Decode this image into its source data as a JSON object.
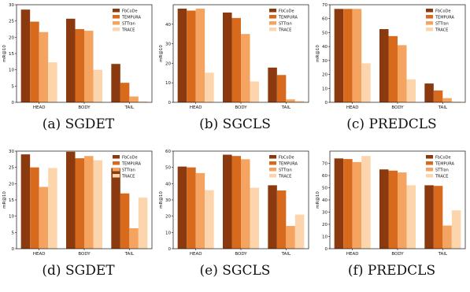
{
  "colors": {
    "FbCoDe": "#8b3a0f",
    "TEMPURA": "#d86a1e",
    "STTran": "#f4a460",
    "TRACE": "#fdd5ad"
  },
  "chart_data": [
    {
      "type": "bar",
      "caption": "(a) SGDET",
      "categories": [
        "HEAD",
        "BODY",
        "TAIL"
      ],
      "ylabel": "mR@10",
      "ylim": [
        0,
        30
      ],
      "yticks": [
        0,
        5,
        10,
        15,
        20,
        25,
        30
      ],
      "series": [
        {
          "name": "FbCoDe",
          "values": [
            28.5,
            25.7,
            11.8
          ]
        },
        {
          "name": "TEMPURA",
          "values": [
            24.8,
            22.5,
            6.0
          ]
        },
        {
          "name": "STTran",
          "values": [
            21.6,
            22.0,
            1.8
          ]
        },
        {
          "name": "TRACE",
          "values": [
            12.3,
            10.0,
            0.3
          ]
        }
      ]
    },
    {
      "type": "bar",
      "caption": "(b) SGCLS",
      "categories": [
        "HEAD",
        "BODY",
        "TAIL"
      ],
      "ylabel": "mR@10",
      "ylim": [
        0,
        50
      ],
      "yticks": [
        0,
        10,
        20,
        30,
        40
      ],
      "series": [
        {
          "name": "FbCoDe",
          "values": [
            48.0,
            46.0,
            17.8
          ]
        },
        {
          "name": "TEMPURA",
          "values": [
            47.0,
            43.2,
            14.0
          ]
        },
        {
          "name": "STTran",
          "values": [
            48.0,
            35.0,
            1.5
          ]
        },
        {
          "name": "TRACE",
          "values": [
            15.2,
            10.7,
            0.8
          ]
        }
      ]
    },
    {
      "type": "bar",
      "caption": "(c) PREDCLS",
      "categories": [
        "HEAD",
        "BODY",
        "TAIL"
      ],
      "ylabel": "mR@10",
      "ylim": [
        0,
        70
      ],
      "yticks": [
        0,
        10,
        20,
        30,
        40,
        50,
        60,
        70
      ],
      "series": [
        {
          "name": "FbCoDe",
          "values": [
            67.0,
            52.5,
            13.5
          ]
        },
        {
          "name": "TEMPURA",
          "values": [
            67.0,
            47.5,
            8.5
          ]
        },
        {
          "name": "STTran",
          "values": [
            67.0,
            41.0,
            3.0
          ]
        },
        {
          "name": "TRACE",
          "values": [
            28.0,
            16.5,
            0.5
          ]
        }
      ]
    },
    {
      "type": "bar",
      "caption": "(d) SGDET",
      "categories": [
        "HEAD",
        "BODY",
        "TAIL"
      ],
      "ylabel": "mR@10",
      "ylim": [
        0,
        30
      ],
      "yticks": [
        0,
        5,
        10,
        15,
        20,
        25,
        30
      ],
      "series": [
        {
          "name": "FbCoDe",
          "values": [
            29.0,
            29.8,
            24.8
          ]
        },
        {
          "name": "TEMPURA",
          "values": [
            25.0,
            27.8,
            17.0
          ]
        },
        {
          "name": "STTran",
          "values": [
            19.0,
            28.5,
            6.3
          ]
        },
        {
          "name": "TRACE",
          "values": [
            24.8,
            27.2,
            15.7
          ]
        }
      ]
    },
    {
      "type": "bar",
      "caption": "(e) SGCLS",
      "categories": [
        "HEAD",
        "BODY",
        "TAIL"
      ],
      "ylabel": "mR@10",
      "ylim": [
        0,
        60
      ],
      "yticks": [
        0,
        10,
        20,
        30,
        40,
        50,
        60
      ],
      "series": [
        {
          "name": "FbCoDe",
          "values": [
            50.5,
            57.8,
            39.0
          ]
        },
        {
          "name": "TEMPURA",
          "values": [
            50.0,
            57.0,
            35.8
          ]
        },
        {
          "name": "STTran",
          "values": [
            46.5,
            55.0,
            14.0
          ]
        },
        {
          "name": "TRACE",
          "values": [
            36.0,
            37.5,
            21.0
          ]
        }
      ]
    },
    {
      "type": "bar",
      "caption": "(f) PREDCLS",
      "categories": [
        "HEAD",
        "BODY",
        "TAIL"
      ],
      "ylabel": "mR@10",
      "ylim": [
        0,
        80
      ],
      "yticks": [
        0,
        10,
        20,
        30,
        40,
        50,
        60,
        70
      ],
      "series": [
        {
          "name": "FbCoDe",
          "values": [
            74.0,
            65.0,
            52.0
          ]
        },
        {
          "name": "TEMPURA",
          "values": [
            73.5,
            64.0,
            51.5
          ]
        },
        {
          "name": "STTran",
          "values": [
            71.0,
            62.5,
            19.0
          ]
        },
        {
          "name": "TRACE",
          "values": [
            76.0,
            52.0,
            31.5
          ]
        }
      ]
    }
  ]
}
